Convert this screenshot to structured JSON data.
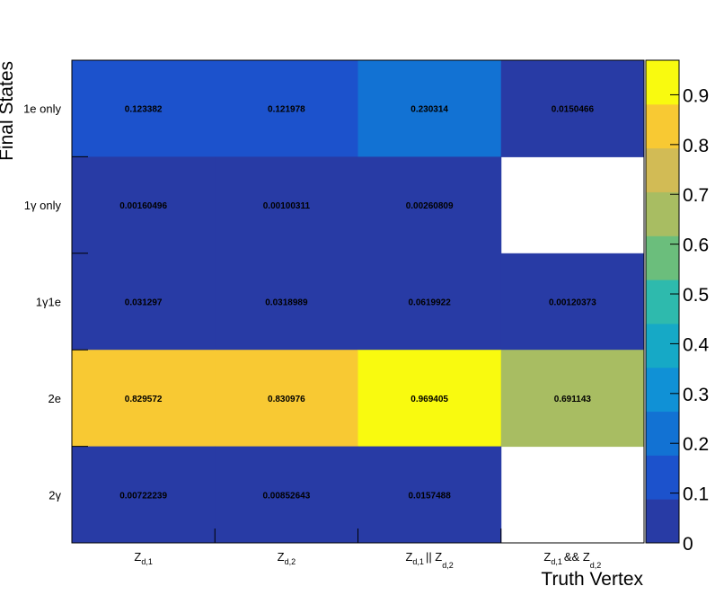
{
  "chart_data": {
    "type": "heatmap",
    "xlabel": "Truth Vertex",
    "ylabel": "Final States",
    "x_categories": [
      {
        "main": "Z",
        "sub": "d,1"
      },
      {
        "main": "Z",
        "sub": "d,2"
      },
      {
        "main": "Z",
        "sub": "d,1",
        "mid": "|| Z",
        "sub2": "d,2"
      },
      {
        "main": "Z",
        "sub": "d,1",
        "mid": "&& Z",
        "sub2": "d,2"
      }
    ],
    "y_categories": [
      "1e only",
      "1γ only",
      "1γ1e",
      "2e",
      "2γ"
    ],
    "values": [
      [
        0.123382,
        0.121978,
        0.230314,
        0.0150466
      ],
      [
        0.00160496,
        0.00100311,
        0.00260809,
        null
      ],
      [
        0.031297,
        0.0318989,
        0.0619922,
        0.00120373
      ],
      [
        0.829572,
        0.830976,
        0.969405,
        0.691143
      ],
      [
        0.00722239,
        0.00852643,
        0.0157488,
        null
      ]
    ],
    "labels": [
      [
        "0.123382",
        "0.121978",
        "0.230314",
        "0.0150466"
      ],
      [
        "0.00160496",
        "0.00100311",
        "0.00260809",
        ""
      ],
      [
        "0.031297",
        "0.0318989",
        "0.0619922",
        "0.00120373"
      ],
      [
        "0.829572",
        "0.830976",
        "0.969405",
        "0.691143"
      ],
      [
        "0.00722239",
        "0.00852643",
        "0.0157488",
        ""
      ]
    ],
    "zlim": [
      0,
      0.969405
    ],
    "colorbar_ticks": [
      "0",
      "0.1",
      "0.2",
      "0.3",
      "0.4",
      "0.5",
      "0.6",
      "0.7",
      "0.8",
      "0.9"
    ],
    "colorbar_tick_values": [
      0,
      0.1,
      0.2,
      0.3,
      0.4,
      0.5,
      0.6,
      0.7,
      0.8,
      0.9
    ],
    "palette": [
      "#283ba5",
      "#1c52cc",
      "#1272d3",
      "#1091d6",
      "#16a9c6",
      "#2ebaad",
      "#6bbe7c",
      "#a8bd62",
      "#d2bb55",
      "#f8c933",
      "#f9fa0f"
    ]
  }
}
